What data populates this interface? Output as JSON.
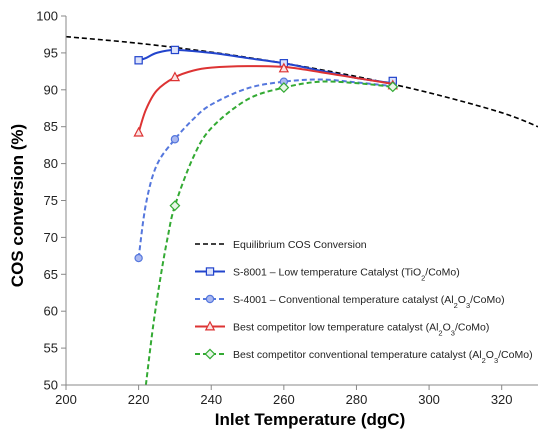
{
  "chart_data": {
    "type": "line",
    "xlabel": "Inlet Temperature  (dgC)",
    "ylabel": "COS conversion (%)",
    "xlim": [
      200,
      330
    ],
    "ylim": [
      50,
      100
    ],
    "xticks": [
      200,
      220,
      240,
      260,
      280,
      300,
      320
    ],
    "yticks": [
      50,
      55,
      60,
      65,
      70,
      75,
      80,
      85,
      90,
      95,
      100
    ],
    "grid": false,
    "legend_position": "bottom-right",
    "series": [
      {
        "name": "Equilibrium COS Conversion",
        "name_parts": [
          {
            "t": "Equilibrium COS Conversion"
          }
        ],
        "color": "#000000",
        "dash": "dashed",
        "marker": "none",
        "curve": [
          [
            200,
            97.2
          ],
          [
            220,
            96.3
          ],
          [
            240,
            95.1
          ],
          [
            260,
            93.6
          ],
          [
            280,
            91.8
          ],
          [
            300,
            89.6
          ],
          [
            320,
            86.9
          ],
          [
            330,
            85.0
          ]
        ],
        "points": []
      },
      {
        "name": "S-8001 – Low temperature Catalyst (TiO2/CoMo)",
        "name_parts": [
          {
            "t": "S-8001 – Low temperature Catalyst (TiO"
          },
          {
            "t": "2",
            "sub": true
          },
          {
            "t": "/CoMo)"
          }
        ],
        "color": "#2244cc",
        "dash": "solid",
        "marker": "square",
        "curve": [
          [
            220,
            94.0
          ],
          [
            222,
            94.3
          ],
          [
            225,
            95.0
          ],
          [
            230,
            95.4
          ],
          [
            240,
            95.0
          ],
          [
            250,
            94.3
          ],
          [
            260,
            93.6
          ],
          [
            270,
            92.6
          ],
          [
            280,
            91.6
          ],
          [
            290,
            90.9
          ]
        ],
        "points": [
          [
            220,
            94.0
          ],
          [
            230,
            95.4
          ],
          [
            260,
            93.6
          ],
          [
            290,
            91.2
          ]
        ]
      },
      {
        "name": "S-4001 – Conventional temperature catalyst (Al2O3/CoMo)",
        "name_parts": [
          {
            "t": "S-4001 – Conventional temperature catalyst (Al"
          },
          {
            "t": "2",
            "sub": true
          },
          {
            "t": "O"
          },
          {
            "t": "3",
            "sub": true
          },
          {
            "t": "/CoMo)"
          }
        ],
        "color": "#5577dd",
        "dash": "dashed",
        "marker": "circle",
        "curve": [
          [
            220,
            67.2
          ],
          [
            222,
            74.5
          ],
          [
            225,
            79.8
          ],
          [
            230,
            83.3
          ],
          [
            235,
            86.0
          ],
          [
            240,
            88.0
          ],
          [
            250,
            90.2
          ],
          [
            260,
            91.1
          ],
          [
            270,
            91.4
          ],
          [
            280,
            91.0
          ],
          [
            290,
            90.5
          ]
        ],
        "points": [
          [
            220,
            67.2
          ],
          [
            230,
            83.3
          ],
          [
            260,
            91.1
          ],
          [
            290,
            90.5
          ]
        ]
      },
      {
        "name": "Best competitor low temperature catalyst (Al2O3/CoMo)",
        "name_parts": [
          {
            "t": "Best competitor low temperature catalyst (Al"
          },
          {
            "t": "2",
            "sub": true
          },
          {
            "t": "O"
          },
          {
            "t": "3",
            "sub": true
          },
          {
            "t": "/CoMo)"
          }
        ],
        "color": "#dd3333",
        "dash": "solid",
        "marker": "triangle",
        "curve": [
          [
            220,
            84.2
          ],
          [
            222,
            87.3
          ],
          [
            225,
            89.9
          ],
          [
            230,
            91.7
          ],
          [
            235,
            92.6
          ],
          [
            240,
            93.0
          ],
          [
            250,
            93.2
          ],
          [
            260,
            93.1
          ],
          [
            270,
            92.4
          ],
          [
            280,
            91.6
          ],
          [
            290,
            90.8
          ]
        ],
        "points": [
          [
            220,
            84.2
          ],
          [
            230,
            91.7
          ],
          [
            260,
            92.9
          ],
          [
            290,
            90.6
          ]
        ]
      },
      {
        "name": "Best competitor conventional temperature catalyst (Al2O3/CoMo)",
        "name_parts": [
          {
            "t": "Best competitor conventional temperature catalyst (Al"
          },
          {
            "t": "2",
            "sub": true
          },
          {
            "t": "O"
          },
          {
            "t": "3",
            "sub": true
          },
          {
            "t": "/CoMo)"
          }
        ],
        "color": "#33aa33",
        "dash": "dashed",
        "marker": "diamond",
        "curve": [
          [
            222,
            50.0
          ],
          [
            224,
            58.0
          ],
          [
            226,
            64.5
          ],
          [
            228,
            70.0
          ],
          [
            230,
            74.3
          ],
          [
            235,
            80.8
          ],
          [
            240,
            84.8
          ],
          [
            250,
            88.7
          ],
          [
            260,
            90.3
          ],
          [
            270,
            91.1
          ],
          [
            280,
            90.9
          ],
          [
            290,
            90.4
          ]
        ],
        "points": [
          [
            230,
            74.3
          ],
          [
            260,
            90.3
          ],
          [
            290,
            90.4
          ]
        ]
      }
    ]
  }
}
